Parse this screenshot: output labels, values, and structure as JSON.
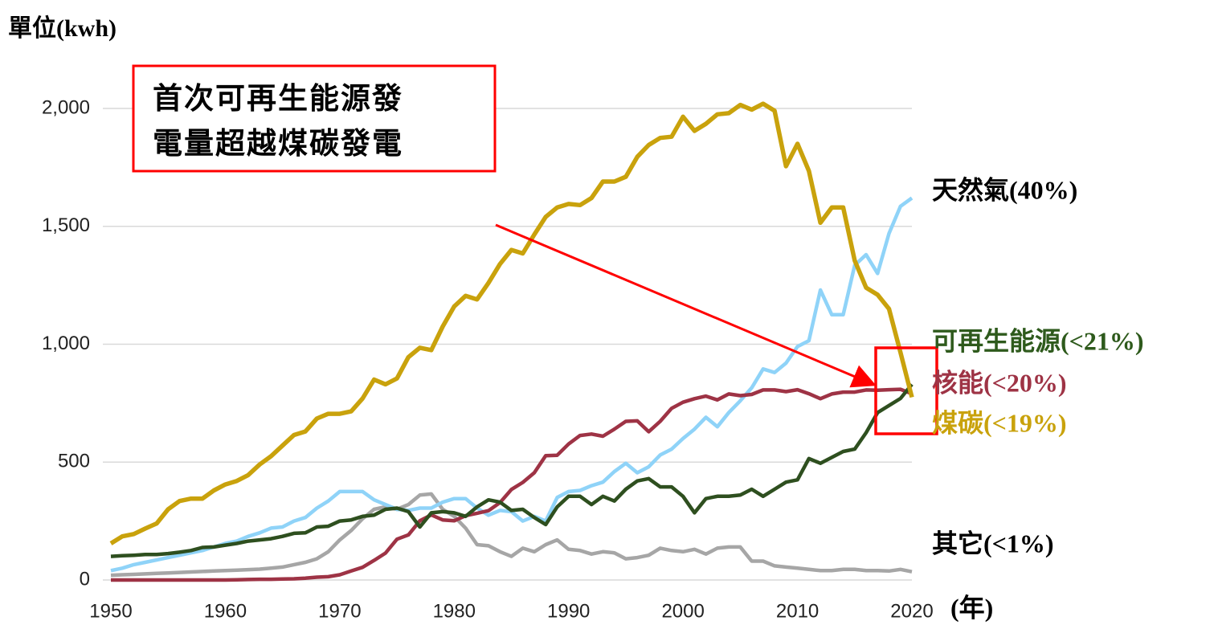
{
  "chart_data": {
    "type": "line",
    "unit_label": "單位(kwh)",
    "x_label": "(年)",
    "annotation": [
      "首次可再生能源發",
      "電量超越煤碳發電"
    ],
    "x": [
      1950,
      1951,
      1952,
      1953,
      1954,
      1955,
      1956,
      1957,
      1958,
      1959,
      1960,
      1961,
      1962,
      1963,
      1964,
      1965,
      1966,
      1967,
      1968,
      1969,
      1970,
      1971,
      1972,
      1973,
      1974,
      1975,
      1976,
      1977,
      1978,
      1979,
      1980,
      1981,
      1982,
      1983,
      1984,
      1985,
      1986,
      1987,
      1988,
      1989,
      1990,
      1991,
      1992,
      1993,
      1994,
      1995,
      1996,
      1997,
      1998,
      1999,
      2000,
      2001,
      2002,
      2003,
      2004,
      2005,
      2006,
      2007,
      2008,
      2009,
      2010,
      2011,
      2012,
      2013,
      2014,
      2015,
      2016,
      2017,
      2018,
      2019,
      2020
    ],
    "xlim": [
      1950,
      2020
    ],
    "xticks": [
      1950,
      1960,
      1970,
      1980,
      1990,
      2000,
      2010,
      2020
    ],
    "ylim": [
      0,
      2000
    ],
    "yticks": [
      0,
      500,
      {
        "value": 1000,
        "label": "1,000"
      },
      {
        "value": 1500,
        "label": "1,500"
      },
      {
        "value": 2000,
        "label": "2,000"
      }
    ],
    "grid": true,
    "series": [
      {
        "name": "其它(<1%)",
        "color": "#a6a6a6",
        "label_color": "#000000",
        "values": [
          20,
          22,
          24,
          26,
          28,
          30,
          32,
          34,
          36,
          38,
          40,
          42,
          44,
          46,
          50,
          55,
          65,
          75,
          90,
          120,
          170,
          210,
          260,
          300,
          310,
          300,
          320,
          360,
          365,
          300,
          270,
          220,
          150,
          145,
          120,
          100,
          135,
          120,
          150,
          170,
          130,
          125,
          110,
          120,
          115,
          90,
          95,
          105,
          135,
          125,
          120,
          130,
          110,
          135,
          140,
          140,
          80,
          80,
          60,
          55,
          50,
          45,
          40,
          40,
          45,
          45,
          40,
          40,
          38,
          45,
          35
        ]
      },
      {
        "name": "天然氣(40%)",
        "color": "#8fd3f8",
        "label_color": "#000000",
        "values": [
          40,
          50,
          65,
          75,
          85,
          95,
          105,
          115,
          125,
          140,
          155,
          165,
          185,
          200,
          220,
          225,
          250,
          265,
          305,
          335,
          375,
          375,
          375,
          340,
          320,
          300,
          295,
          305,
          305,
          330,
          345,
          345,
          305,
          275,
          295,
          290,
          250,
          270,
          250,
          350,
          375,
          380,
          400,
          415,
          460,
          495,
          455,
          480,
          530,
          555,
          600,
          640,
          690,
          650,
          710,
          760,
          815,
          895,
          880,
          920,
          990,
          1015,
          1230,
          1125,
          1125,
          1335,
          1380,
          1300,
          1470,
          1585,
          1620
        ]
      },
      {
        "name": "核能(<20%)",
        "color": "#9e3345",
        "label_color": "#9e3345",
        "values": [
          0,
          0,
          0,
          0,
          0,
          0,
          0,
          0,
          0,
          0,
          0,
          1,
          2,
          3,
          3,
          4,
          5,
          8,
          12,
          14,
          22,
          38,
          54,
          83,
          114,
          173,
          191,
          251,
          276,
          255,
          251,
          273,
          283,
          294,
          328,
          384,
          414,
          455,
          527,
          529,
          577,
          613,
          619,
          610,
          640,
          673,
          675,
          629,
          673,
          728,
          754,
          769,
          780,
          764,
          789,
          782,
          787,
          806,
          806,
          799,
          807,
          790,
          769,
          789,
          797,
          797,
          806,
          805,
          807,
          809,
          790
        ]
      },
      {
        "name": "可再生能源(<21%)",
        "color": "#2e4f1f",
        "label_color": "#2e5a1c",
        "values": [
          100,
          103,
          105,
          108,
          108,
          112,
          118,
          125,
          138,
          140,
          148,
          155,
          165,
          170,
          175,
          185,
          198,
          200,
          225,
          228,
          250,
          255,
          270,
          275,
          300,
          305,
          290,
          225,
          285,
          290,
          285,
          270,
          310,
          340,
          330,
          295,
          300,
          265,
          235,
          310,
          355,
          355,
          320,
          355,
          335,
          385,
          420,
          430,
          395,
          395,
          355,
          285,
          345,
          355,
          355,
          360,
          385,
          355,
          385,
          415,
          425,
          515,
          495,
          520,
          545,
          555,
          625,
          710,
          740,
          770,
          830
        ]
      },
      {
        "name": "煤碳(<19%)",
        "color": "#c9a20c",
        "label_color": "#c9a20c",
        "values": [
          155,
          185,
          195,
          218,
          240,
          300,
          335,
          345,
          345,
          380,
          405,
          420,
          445,
          490,
          525,
          570,
          615,
          630,
          685,
          705,
          705,
          715,
          770,
          850,
          830,
          855,
          945,
          985,
          975,
          1075,
          1160,
          1205,
          1190,
          1260,
          1340,
          1400,
          1385,
          1465,
          1540,
          1580,
          1595,
          1590,
          1620,
          1690,
          1690,
          1710,
          1795,
          1845,
          1875,
          1880,
          1965,
          1905,
          1935,
          1975,
          1980,
          2015,
          1995,
          2020,
          1990,
          1755,
          1850,
          1735,
          1515,
          1580,
          1580,
          1355,
          1240,
          1210,
          1150,
          965,
          775
        ]
      }
    ]
  }
}
